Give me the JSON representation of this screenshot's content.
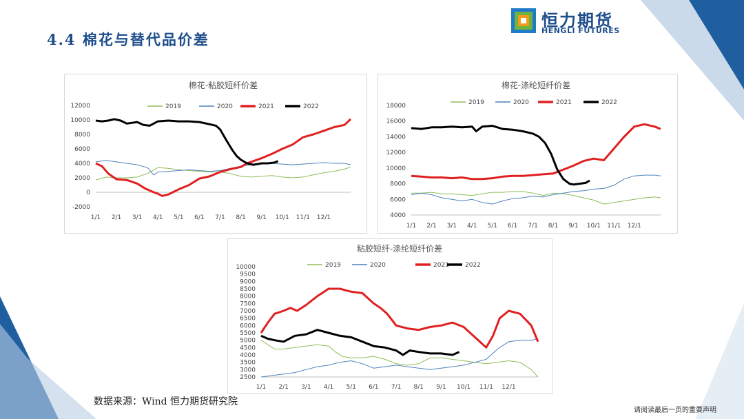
{
  "slide": {
    "title": "4.4 棉花与替代品价差",
    "source": "数据来源：Wind 恒力期货研究院",
    "footer": "请阅读最后一页的重要声明"
  },
  "logo": {
    "name_cn": "恒力期货",
    "name_en": "HENGLI FUTURES",
    "colors": {
      "blue": "#1f7ac8",
      "orange": "#f39a1e",
      "green": "#6db33f"
    }
  },
  "legend_colors": {
    "2019": "#8fbc5a",
    "2020": "#4f81bd",
    "2021": "#e02020",
    "2022": "#000000"
  },
  "chart_data": [
    {
      "type": "line",
      "title": "棉花-粘胶短纤价差",
      "categories": [
        "1/1",
        "2/1",
        "3/1",
        "4/1",
        "5/1",
        "6/1",
        "7/1",
        "8/1",
        "9/1",
        "10/1",
        "11/1",
        "12/1"
      ],
      "yticks": [
        "-2000",
        "0",
        "2000",
        "4000",
        "6000",
        "8000",
        "10000",
        "12000"
      ],
      "ylim": [
        -2000,
        12000
      ],
      "legend_position": "top",
      "series": [
        {
          "name": "2019",
          "x": [
            0,
            0.5,
            1,
            1.5,
            2,
            2.5,
            3,
            3.5,
            4,
            4.5,
            5,
            5.5,
            6,
            6.5,
            7,
            7.5,
            8,
            8.5,
            9,
            9.5,
            10,
            10.5,
            11,
            11.5,
            12,
            12.3
          ],
          "values": [
            1700,
            2100,
            2000,
            2000,
            2100,
            2600,
            3400,
            3300,
            3100,
            3000,
            2900,
            2800,
            2800,
            2600,
            2200,
            2100,
            2200,
            2300,
            2100,
            2000,
            2100,
            2400,
            2700,
            2900,
            3200,
            3500
          ]
        },
        {
          "name": "2020",
          "x": [
            0,
            0.5,
            1,
            1.5,
            2,
            2.5,
            2.8,
            3,
            3.5,
            4,
            4.5,
            5,
            5.5,
            6,
            6.5,
            7,
            7.5,
            8,
            8.5,
            9,
            9.5,
            10,
            10.5,
            11,
            11.5,
            12,
            12.3
          ],
          "values": [
            4200,
            4400,
            4200,
            4000,
            3800,
            3400,
            2400,
            2800,
            2900,
            3000,
            3100,
            3000,
            2900,
            3000,
            3300,
            3600,
            3800,
            3900,
            4000,
            3900,
            3800,
            3900,
            4000,
            4100,
            4000,
            4000,
            3800
          ]
        },
        {
          "name": "2021",
          "x": [
            0,
            0.3,
            0.6,
            1,
            1.5,
            2,
            2.4,
            2.8,
            3,
            3.2,
            3.5,
            4,
            4.5,
            5,
            5.5,
            6,
            6.5,
            7,
            7.3,
            7.6,
            8,
            8.5,
            9,
            9.5,
            10,
            10.5,
            11,
            11.5,
            12,
            12.3
          ],
          "values": [
            4000,
            3600,
            2600,
            1800,
            1700,
            1200,
            500,
            0,
            -200,
            -500,
            -300,
            400,
            1000,
            1900,
            2200,
            2800,
            3200,
            3500,
            4000,
            4300,
            4700,
            5300,
            6000,
            6600,
            7600,
            8000,
            8500,
            9000,
            9300,
            10100
          ]
        },
        {
          "name": "2022",
          "x": [
            0,
            0.3,
            0.6,
            0.9,
            1.2,
            1.5,
            2,
            2.3,
            2.6,
            3,
            3.5,
            4,
            4.5,
            5,
            5.5,
            5.8,
            6,
            6.3,
            6.6,
            6.8,
            7,
            7.3,
            7.6,
            8,
            8.3,
            8.6,
            8.8
          ],
          "values": [
            9900,
            9800,
            9900,
            10100,
            9900,
            9500,
            9700,
            9300,
            9200,
            9800,
            9900,
            9800,
            9800,
            9700,
            9400,
            9200,
            8700,
            7200,
            5800,
            5000,
            4500,
            4000,
            3800,
            4000,
            4000,
            4100,
            4300
          ]
        }
      ]
    },
    {
      "type": "line",
      "title": "棉花-涤纶短纤价差",
      "categories": [
        "1/1",
        "2/1",
        "3/1",
        "4/1",
        "5/1",
        "6/1",
        "7/1",
        "8/1",
        "9/1",
        "10/1",
        "11/1",
        "12/1"
      ],
      "yticks": [
        "4000",
        "6000",
        "8000",
        "10000",
        "12000",
        "14000",
        "16000",
        "18000"
      ],
      "ylim": [
        4000,
        18000
      ],
      "legend_position": "top",
      "series": [
        {
          "name": "2019",
          "x": [
            0,
            0.5,
            1,
            1.5,
            2,
            2.5,
            3,
            3.5,
            4,
            4.5,
            5,
            5.5,
            6,
            6.5,
            7,
            7.5,
            8,
            8.5,
            9,
            9.5,
            10,
            10.5,
            11,
            11.5,
            12,
            12.3
          ],
          "values": [
            6800,
            6800,
            6900,
            6700,
            6700,
            6600,
            6500,
            6700,
            6900,
            6900,
            7000,
            7000,
            6800,
            6500,
            6800,
            6700,
            6500,
            6200,
            5900,
            5400,
            5600,
            5800,
            6000,
            6200,
            6300,
            6200
          ]
        },
        {
          "name": "2020",
          "x": [
            0,
            0.5,
            1,
            1.5,
            2,
            2.5,
            3,
            3.5,
            4,
            4.5,
            5,
            5.5,
            6,
            6.5,
            7,
            7.5,
            8,
            8.5,
            9,
            9.5,
            10,
            10.5,
            11,
            11.5,
            12,
            12.3
          ],
          "values": [
            6600,
            6800,
            6600,
            6200,
            6000,
            5800,
            6000,
            5600,
            5400,
            5800,
            6100,
            6200,
            6400,
            6300,
            6600,
            6800,
            7000,
            7100,
            7300,
            7400,
            7800,
            8600,
            9000,
            9100,
            9100,
            9000
          ]
        },
        {
          "name": "2021",
          "x": [
            0,
            0.5,
            1,
            1.5,
            2,
            2.5,
            3,
            3.5,
            4,
            4.5,
            5,
            5.5,
            6,
            6.5,
            7,
            7.5,
            8,
            8.5,
            9,
            9.5,
            10,
            10.5,
            11,
            11.5,
            12,
            12.3
          ],
          "values": [
            9000,
            8900,
            8800,
            8800,
            8700,
            8800,
            8600,
            8600,
            8700,
            8900,
            9000,
            9000,
            9100,
            9200,
            9300,
            9800,
            10300,
            10900,
            11200,
            11000,
            12500,
            14000,
            15300,
            15600,
            15300,
            15000
          ]
        },
        {
          "name": "2022",
          "x": [
            0,
            0.5,
            1,
            1.5,
            2,
            2.5,
            3,
            3.2,
            3.5,
            4,
            4.5,
            5,
            5.5,
            6,
            6.3,
            6.6,
            6.9,
            7.2,
            7.5,
            7.8,
            8,
            8.3,
            8.6,
            8.8
          ],
          "values": [
            15100,
            15000,
            15200,
            15200,
            15300,
            15200,
            15300,
            14700,
            15300,
            15400,
            15000,
            14900,
            14700,
            14400,
            14000,
            13200,
            11800,
            9800,
            8600,
            8000,
            7900,
            8000,
            8100,
            8400
          ]
        }
      ]
    },
    {
      "type": "line",
      "title": "粘胶短纤-涤纶短纤价差",
      "categories": [
        "1/1",
        "2/1",
        "3/1",
        "4/1",
        "5/1",
        "6/1",
        "7/1",
        "8/1",
        "9/1",
        "10/1",
        "11/1",
        "12/1"
      ],
      "yticks": [
        "2500",
        "3000",
        "3500",
        "4000",
        "4500",
        "5000",
        "5500",
        "6000",
        "6500",
        "7000",
        "7500",
        "8000",
        "8500",
        "9000",
        "9500",
        "10000"
      ],
      "ylim": [
        2500,
        10000
      ],
      "legend_position": "top",
      "series": [
        {
          "name": "2019",
          "x": [
            0,
            0.3,
            0.6,
            1,
            1.5,
            2,
            2.5,
            3,
            3.3,
            3.6,
            4,
            4.5,
            5,
            5.5,
            6,
            6.5,
            7,
            7.5,
            8,
            8.5,
            9,
            9.5,
            10,
            10.5,
            11,
            11.5,
            12,
            12.3
          ],
          "values": [
            5000,
            4700,
            4400,
            4400,
            4500,
            4600,
            4700,
            4600,
            4200,
            3900,
            3800,
            3800,
            3900,
            3700,
            3400,
            3300,
            3400,
            3800,
            3800,
            3700,
            3600,
            3500,
            3400,
            3500,
            3600,
            3500,
            3000,
            2500
          ]
        },
        {
          "name": "2020",
          "x": [
            0,
            0.5,
            1,
            1.5,
            2,
            2.5,
            3,
            3.5,
            4,
            4.5,
            5,
            5.5,
            6,
            6.5,
            7,
            7.5,
            8,
            8.5,
            9,
            9.5,
            10,
            10.5,
            11,
            11.5,
            12,
            12.3
          ],
          "values": [
            2500,
            2600,
            2700,
            2800,
            3000,
            3200,
            3300,
            3500,
            3600,
            3400,
            3100,
            3200,
            3300,
            3200,
            3100,
            3000,
            3100,
            3200,
            3300,
            3500,
            3700,
            4400,
            4900,
            5000,
            5000,
            5100
          ]
        },
        {
          "name": "2021",
          "x": [
            0,
            0.3,
            0.6,
            1,
            1.3,
            1.6,
            2,
            2.5,
            3,
            3.5,
            4,
            4.5,
            5,
            5.3,
            5.6,
            6,
            6.5,
            7,
            7.5,
            8,
            8.5,
            9,
            9.5,
            10,
            10.3,
            10.6,
            11,
            11.5,
            12,
            12.3
          ],
          "values": [
            5500,
            6200,
            6800,
            7000,
            7200,
            7000,
            7400,
            8000,
            8500,
            8500,
            8300,
            8200,
            7500,
            7200,
            6800,
            6000,
            5800,
            5700,
            5900,
            6000,
            6200,
            5900,
            5200,
            4500,
            5300,
            6500,
            7000,
            6800,
            6000,
            4900
          ]
        },
        {
          "name": "2022",
          "x": [
            0,
            0.3,
            0.6,
            1,
            1.5,
            2,
            2.5,
            3,
            3.5,
            4,
            4.5,
            5,
            5.5,
            6,
            6.3,
            6.6,
            7,
            7.5,
            8,
            8.5,
            8.8
          ],
          "values": [
            5300,
            5100,
            5000,
            4900,
            5300,
            5400,
            5700,
            5500,
            5300,
            5200,
            4900,
            4600,
            4500,
            4300,
            4000,
            4300,
            4200,
            4100,
            4100,
            4000,
            4200
          ]
        }
      ]
    }
  ]
}
